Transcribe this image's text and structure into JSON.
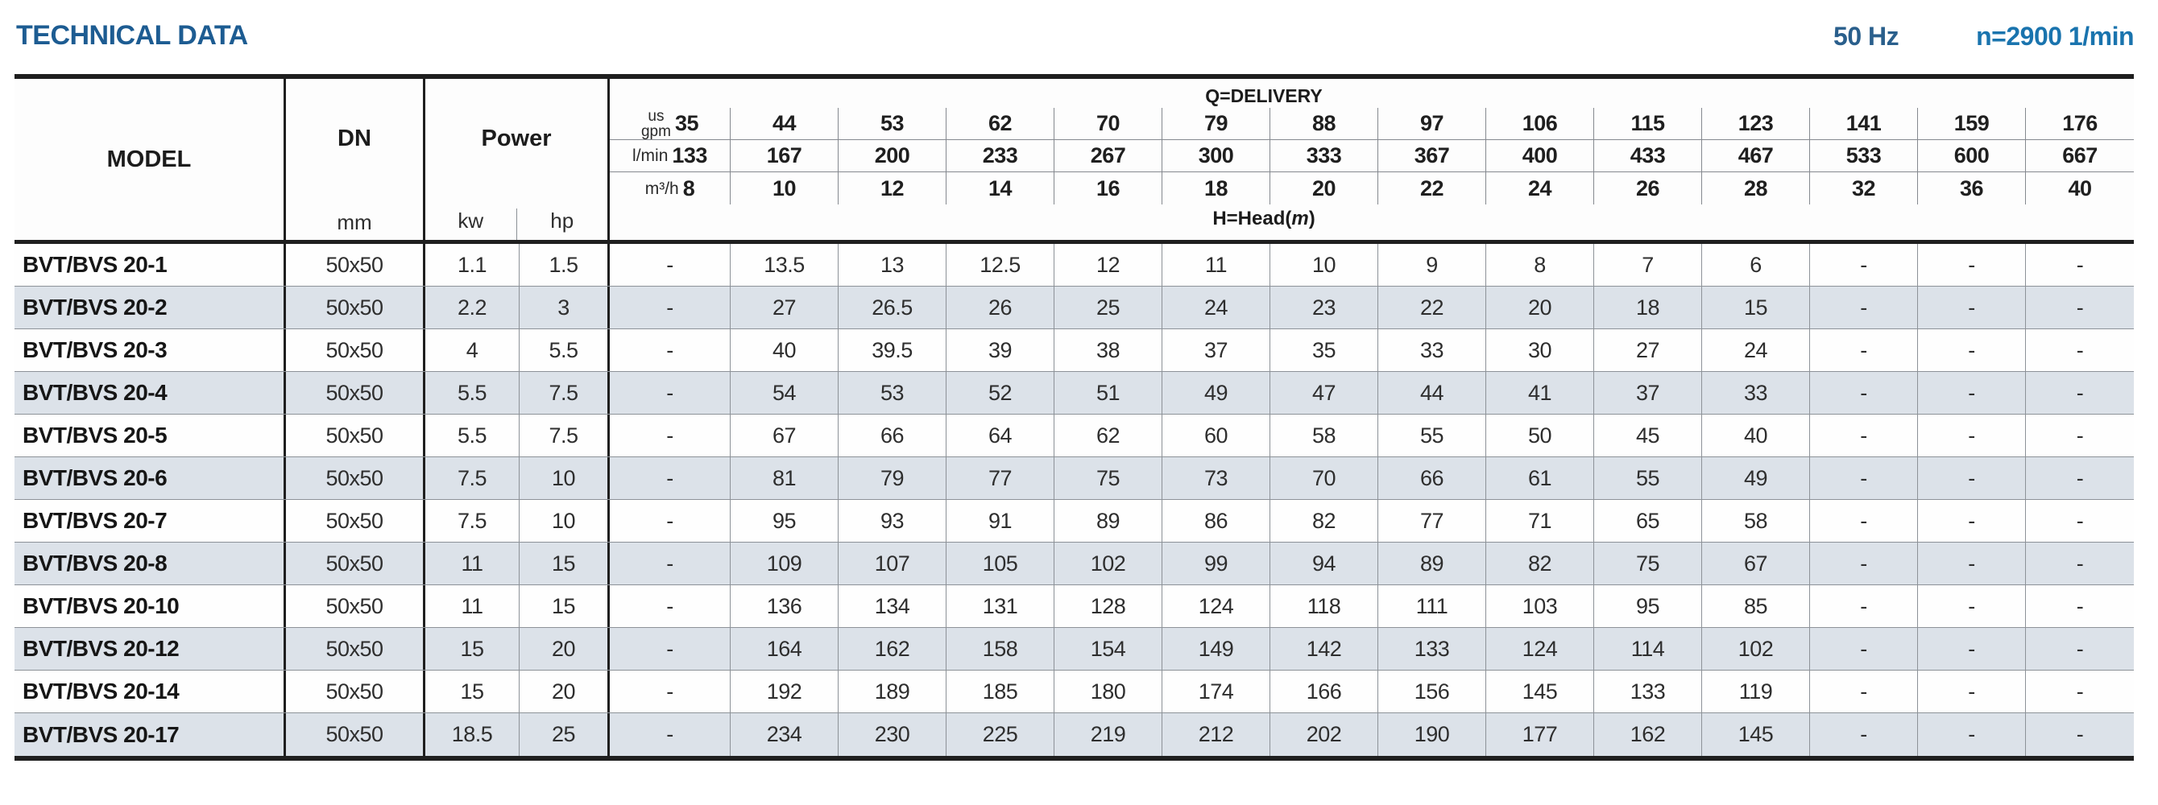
{
  "header": {
    "title": "TECHNICAL DATA",
    "frequency": "50 Hz",
    "rotation_speed": "n=2900 1/min"
  },
  "table": {
    "columns": {
      "model": {
        "label": "MODEL"
      },
      "dn": {
        "label": "DN",
        "unit": "mm"
      },
      "power": {
        "label": "Power",
        "units": [
          "kw",
          "hp"
        ]
      },
      "delivery": {
        "title": "Q=DELIVERY",
        "head_prefix": "H=Head(",
        "head_m": "m",
        "head_suffix": ")",
        "unit_rows": [
          {
            "unit_top": "us",
            "unit": "gpm",
            "values": [
              "35",
              "44",
              "53",
              "62",
              "70",
              "79",
              "88",
              "97",
              "106",
              "115",
              "123",
              "141",
              "159",
              "176"
            ]
          },
          {
            "unit": "l/min",
            "values": [
              "133",
              "167",
              "200",
              "233",
              "267",
              "300",
              "333",
              "367",
              "400",
              "433",
              "467",
              "533",
              "600",
              "667"
            ]
          },
          {
            "unit": "m³/h",
            "values": [
              "8",
              "10",
              "12",
              "14",
              "16",
              "18",
              "20",
              "22",
              "24",
              "26",
              "28",
              "32",
              "36",
              "40"
            ]
          }
        ]
      }
    },
    "rows": [
      {
        "model": "BVT/BVS 20-1",
        "dn": "50x50",
        "kw": "1.1",
        "hp": "1.5",
        "heads": [
          "-",
          "13.5",
          "13",
          "12.5",
          "12",
          "11",
          "10",
          "9",
          "8",
          "7",
          "6",
          "-",
          "-",
          "-"
        ]
      },
      {
        "model": "BVT/BVS 20-2",
        "dn": "50x50",
        "kw": "2.2",
        "hp": "3",
        "heads": [
          "-",
          "27",
          "26.5",
          "26",
          "25",
          "24",
          "23",
          "22",
          "20",
          "18",
          "15",
          "-",
          "-",
          "-"
        ]
      },
      {
        "model": "BVT/BVS 20-3",
        "dn": "50x50",
        "kw": "4",
        "hp": "5.5",
        "heads": [
          "-",
          "40",
          "39.5",
          "39",
          "38",
          "37",
          "35",
          "33",
          "30",
          "27",
          "24",
          "-",
          "-",
          "-"
        ]
      },
      {
        "model": "BVT/BVS 20-4",
        "dn": "50x50",
        "kw": "5.5",
        "hp": "7.5",
        "heads": [
          "-",
          "54",
          "53",
          "52",
          "51",
          "49",
          "47",
          "44",
          "41",
          "37",
          "33",
          "-",
          "-",
          "-"
        ]
      },
      {
        "model": "BVT/BVS 20-5",
        "dn": "50x50",
        "kw": "5.5",
        "hp": "7.5",
        "heads": [
          "-",
          "67",
          "66",
          "64",
          "62",
          "60",
          "58",
          "55",
          "50",
          "45",
          "40",
          "-",
          "-",
          "-"
        ]
      },
      {
        "model": "BVT/BVS 20-6",
        "dn": "50x50",
        "kw": "7.5",
        "hp": "10",
        "heads": [
          "-",
          "81",
          "79",
          "77",
          "75",
          "73",
          "70",
          "66",
          "61",
          "55",
          "49",
          "-",
          "-",
          "-"
        ]
      },
      {
        "model": "BVT/BVS 20-7",
        "dn": "50x50",
        "kw": "7.5",
        "hp": "10",
        "heads": [
          "-",
          "95",
          "93",
          "91",
          "89",
          "86",
          "82",
          "77",
          "71",
          "65",
          "58",
          "-",
          "-",
          "-"
        ]
      },
      {
        "model": "BVT/BVS 20-8",
        "dn": "50x50",
        "kw": "11",
        "hp": "15",
        "heads": [
          "-",
          "109",
          "107",
          "105",
          "102",
          "99",
          "94",
          "89",
          "82",
          "75",
          "67",
          "-",
          "-",
          "-"
        ]
      },
      {
        "model": "BVT/BVS 20-10",
        "dn": "50x50",
        "kw": "11",
        "hp": "15",
        "heads": [
          "-",
          "136",
          "134",
          "131",
          "128",
          "124",
          "118",
          "111",
          "103",
          "95",
          "85",
          "-",
          "-",
          "-"
        ]
      },
      {
        "model": "BVT/BVS 20-12",
        "dn": "50x50",
        "kw": "15",
        "hp": "20",
        "heads": [
          "-",
          "164",
          "162",
          "158",
          "154",
          "149",
          "142",
          "133",
          "124",
          "114",
          "102",
          "-",
          "-",
          "-"
        ]
      },
      {
        "model": "BVT/BVS 20-14",
        "dn": "50x50",
        "kw": "15",
        "hp": "20",
        "heads": [
          "-",
          "192",
          "189",
          "185",
          "180",
          "174",
          "166",
          "156",
          "145",
          "133",
          "119",
          "-",
          "-",
          "-"
        ]
      },
      {
        "model": "BVT/BVS 20-17",
        "dn": "50x50",
        "kw": "18.5",
        "hp": "25",
        "heads": [
          "-",
          "234",
          "230",
          "225",
          "219",
          "212",
          "202",
          "190",
          "177",
          "162",
          "145",
          "-",
          "-",
          "-"
        ]
      }
    ]
  },
  "colors": {
    "title_blue": "#1d5c92",
    "speed_blue": "#1a74ae",
    "row_shading": "#dce2e9",
    "thick_border": "#1f1f1f",
    "thin_border": "#8d9298"
  }
}
